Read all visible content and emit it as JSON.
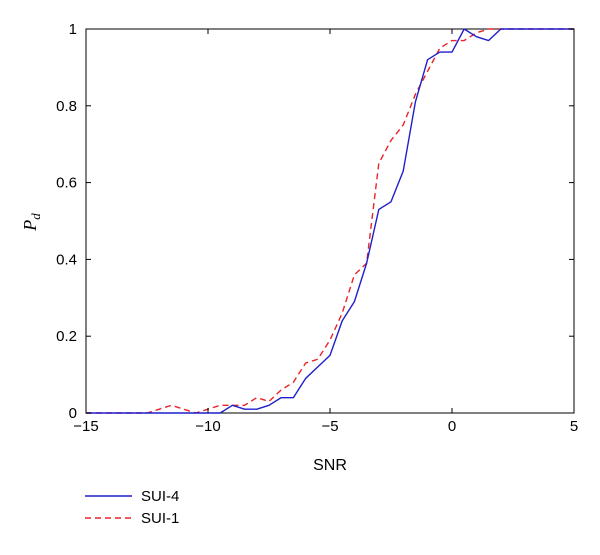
{
  "chart_data": {
    "type": "line",
    "xlabel": "SNR",
    "ylabel": {
      "main": "P",
      "sub": "d"
    },
    "xlim": [
      -15,
      5
    ],
    "ylim": [
      0,
      1
    ],
    "xticks": [
      -15,
      -10,
      -5,
      0,
      5
    ],
    "yticks": [
      0,
      0.2,
      0.4,
      0.6,
      0.8,
      1
    ],
    "xtick_labels": [
      "−15",
      "−10",
      "−5",
      "0",
      "5"
    ],
    "ytick_labels": [
      "0",
      "0.2",
      "0.4",
      "0.6",
      "0.8",
      "1"
    ],
    "grid": false,
    "legend_position": "bottom-left, below the plot",
    "series": [
      {
        "name": "SUI-4",
        "color": "#1f1fcc",
        "style": "solid",
        "x": [
          -15,
          -9.5,
          -9,
          -8.5,
          -8,
          -7.5,
          -7,
          -6.5,
          -6,
          -5.5,
          -5,
          -4.5,
          -4,
          -3.5,
          -3,
          -2.5,
          -2,
          -1.5,
          -1,
          -0.5,
          0,
          0.5,
          1,
          1.5,
          2,
          5
        ],
        "y": [
          0,
          0,
          0.02,
          0.01,
          0.01,
          0.02,
          0.04,
          0.04,
          0.09,
          0.12,
          0.15,
          0.24,
          0.29,
          0.39,
          0.53,
          0.55,
          0.63,
          0.81,
          0.92,
          0.94,
          0.94,
          1.0,
          0.98,
          0.97,
          1.0,
          1.0
        ]
      },
      {
        "name": "SUI-1",
        "color": "#e8232a",
        "style": "dashed",
        "x": [
          -15,
          -12.5,
          -12,
          -11.5,
          -11,
          -10.5,
          -10,
          -9.5,
          -9,
          -8.5,
          -8,
          -7.5,
          -7,
          -6.5,
          -6,
          -5.5,
          -5,
          -4.5,
          -4,
          -3.5,
          -3,
          -2.5,
          -2,
          -1.5,
          -1,
          -0.5,
          0,
          0.5,
          1,
          1.5,
          2,
          5
        ],
        "y": [
          0,
          0,
          0.01,
          0.02,
          0.01,
          0,
          0.01,
          0.02,
          0.02,
          0.02,
          0.04,
          0.03,
          0.06,
          0.08,
          0.13,
          0.14,
          0.19,
          0.26,
          0.36,
          0.39,
          0.65,
          0.71,
          0.75,
          0.83,
          0.89,
          0.95,
          0.97,
          0.97,
          0.99,
          1.0,
          1.0,
          1.0
        ]
      }
    ]
  }
}
